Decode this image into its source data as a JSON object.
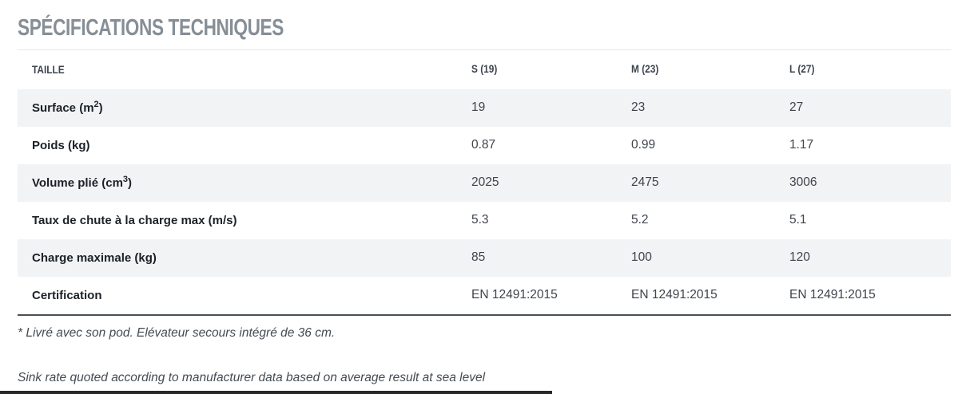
{
  "title": "SPÉCIFICATIONS TECHNIQUES",
  "table": {
    "headers": {
      "size": "TAILLE",
      "s": "S (19)",
      "m": "M (23)",
      "l": "L (27)"
    },
    "rows": [
      {
        "label": "Surface (m",
        "sup": "2",
        "label_close": ")",
        "s": "19",
        "m": "23",
        "l": "27"
      },
      {
        "label": "Poids (kg)",
        "sup": "",
        "label_close": "",
        "s": "0.87",
        "m": "0.99",
        "l": "1.17"
      },
      {
        "label": "Volume plié (cm",
        "sup": "3",
        "label_close": ")",
        "s": "2025",
        "m": "2475",
        "l": "3006"
      },
      {
        "label": "Taux de chute à la charge max (m/s)",
        "sup": "",
        "label_close": "",
        "s": "5.3",
        "m": "5.2",
        "l": "5.1"
      },
      {
        "label": "Charge maximale (kg)",
        "sup": "",
        "label_close": "",
        "s": "85",
        "m": "100",
        "l": "120"
      },
      {
        "label": "Certification",
        "sup": "",
        "label_close": "",
        "s": "EN 12491:2015",
        "m": "EN 12491:2015",
        "l": "EN 12491:2015"
      }
    ]
  },
  "notes": {
    "pod_note": "* Livré avec son pod. Elévateur secours intégré de 36 cm.",
    "sink_rate_note": "Sink rate quoted according to manufacturer data based on average result at sea level"
  },
  "colors": {
    "title_gray": "#868e96",
    "header_text": "#3e444d",
    "label_text": "#1c2127",
    "value_text": "#3e444c",
    "row_alt_bg": "#f1f3f5",
    "title_rule": "#e4e7ea",
    "table_bottom_rule": "#4a5056",
    "bottom_edge": "#27292d"
  }
}
